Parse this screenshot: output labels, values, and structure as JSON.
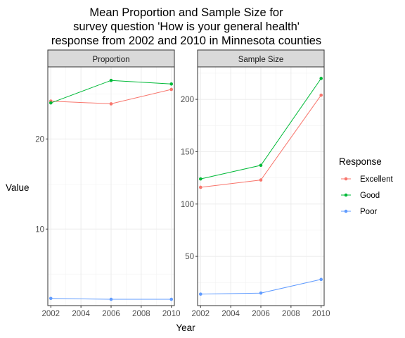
{
  "chart": {
    "title_lines": [
      "Mean Proportion and Sample Size for",
      "survey question 'How is your general health'",
      "response from 2002 and 2010 in Minnesota counties"
    ],
    "xlabel": "Year",
    "ylabel": "Value",
    "legend_title": "Response"
  },
  "chart_data": [
    {
      "type": "line",
      "facet": "Proportion",
      "x": [
        2002,
        2006,
        2010
      ],
      "xticks": [
        2002,
        2004,
        2006,
        2008,
        2010
      ],
      "xlim": [
        2001.8,
        2010.2
      ],
      "yticks": [
        10,
        20
      ],
      "ylim": [
        1.5,
        28.0
      ],
      "grid": true,
      "series": [
        {
          "name": "Excellent",
          "color": "#F8766D",
          "values": [
            24.2,
            23.9,
            25.5
          ]
        },
        {
          "name": "Good",
          "color": "#00BA38",
          "values": [
            24.0,
            26.5,
            26.1
          ]
        },
        {
          "name": "Poor",
          "color": "#619CFF",
          "values": [
            2.3,
            2.2,
            2.2
          ]
        }
      ]
    },
    {
      "type": "line",
      "facet": "Sample Size",
      "x": [
        2002,
        2006,
        2010
      ],
      "xticks": [
        2002,
        2004,
        2006,
        2008,
        2010
      ],
      "xlim": [
        2001.8,
        2010.2
      ],
      "yticks": [
        50,
        100,
        150,
        200
      ],
      "ylim": [
        3.0,
        231.0
      ],
      "grid": true,
      "series": [
        {
          "name": "Excellent",
          "color": "#F8766D",
          "values": [
            116,
            123,
            204
          ]
        },
        {
          "name": "Good",
          "color": "#00BA38",
          "values": [
            124,
            137,
            220
          ]
        },
        {
          "name": "Poor",
          "color": "#619CFF",
          "values": [
            14,
            15,
            28
          ]
        }
      ]
    }
  ]
}
